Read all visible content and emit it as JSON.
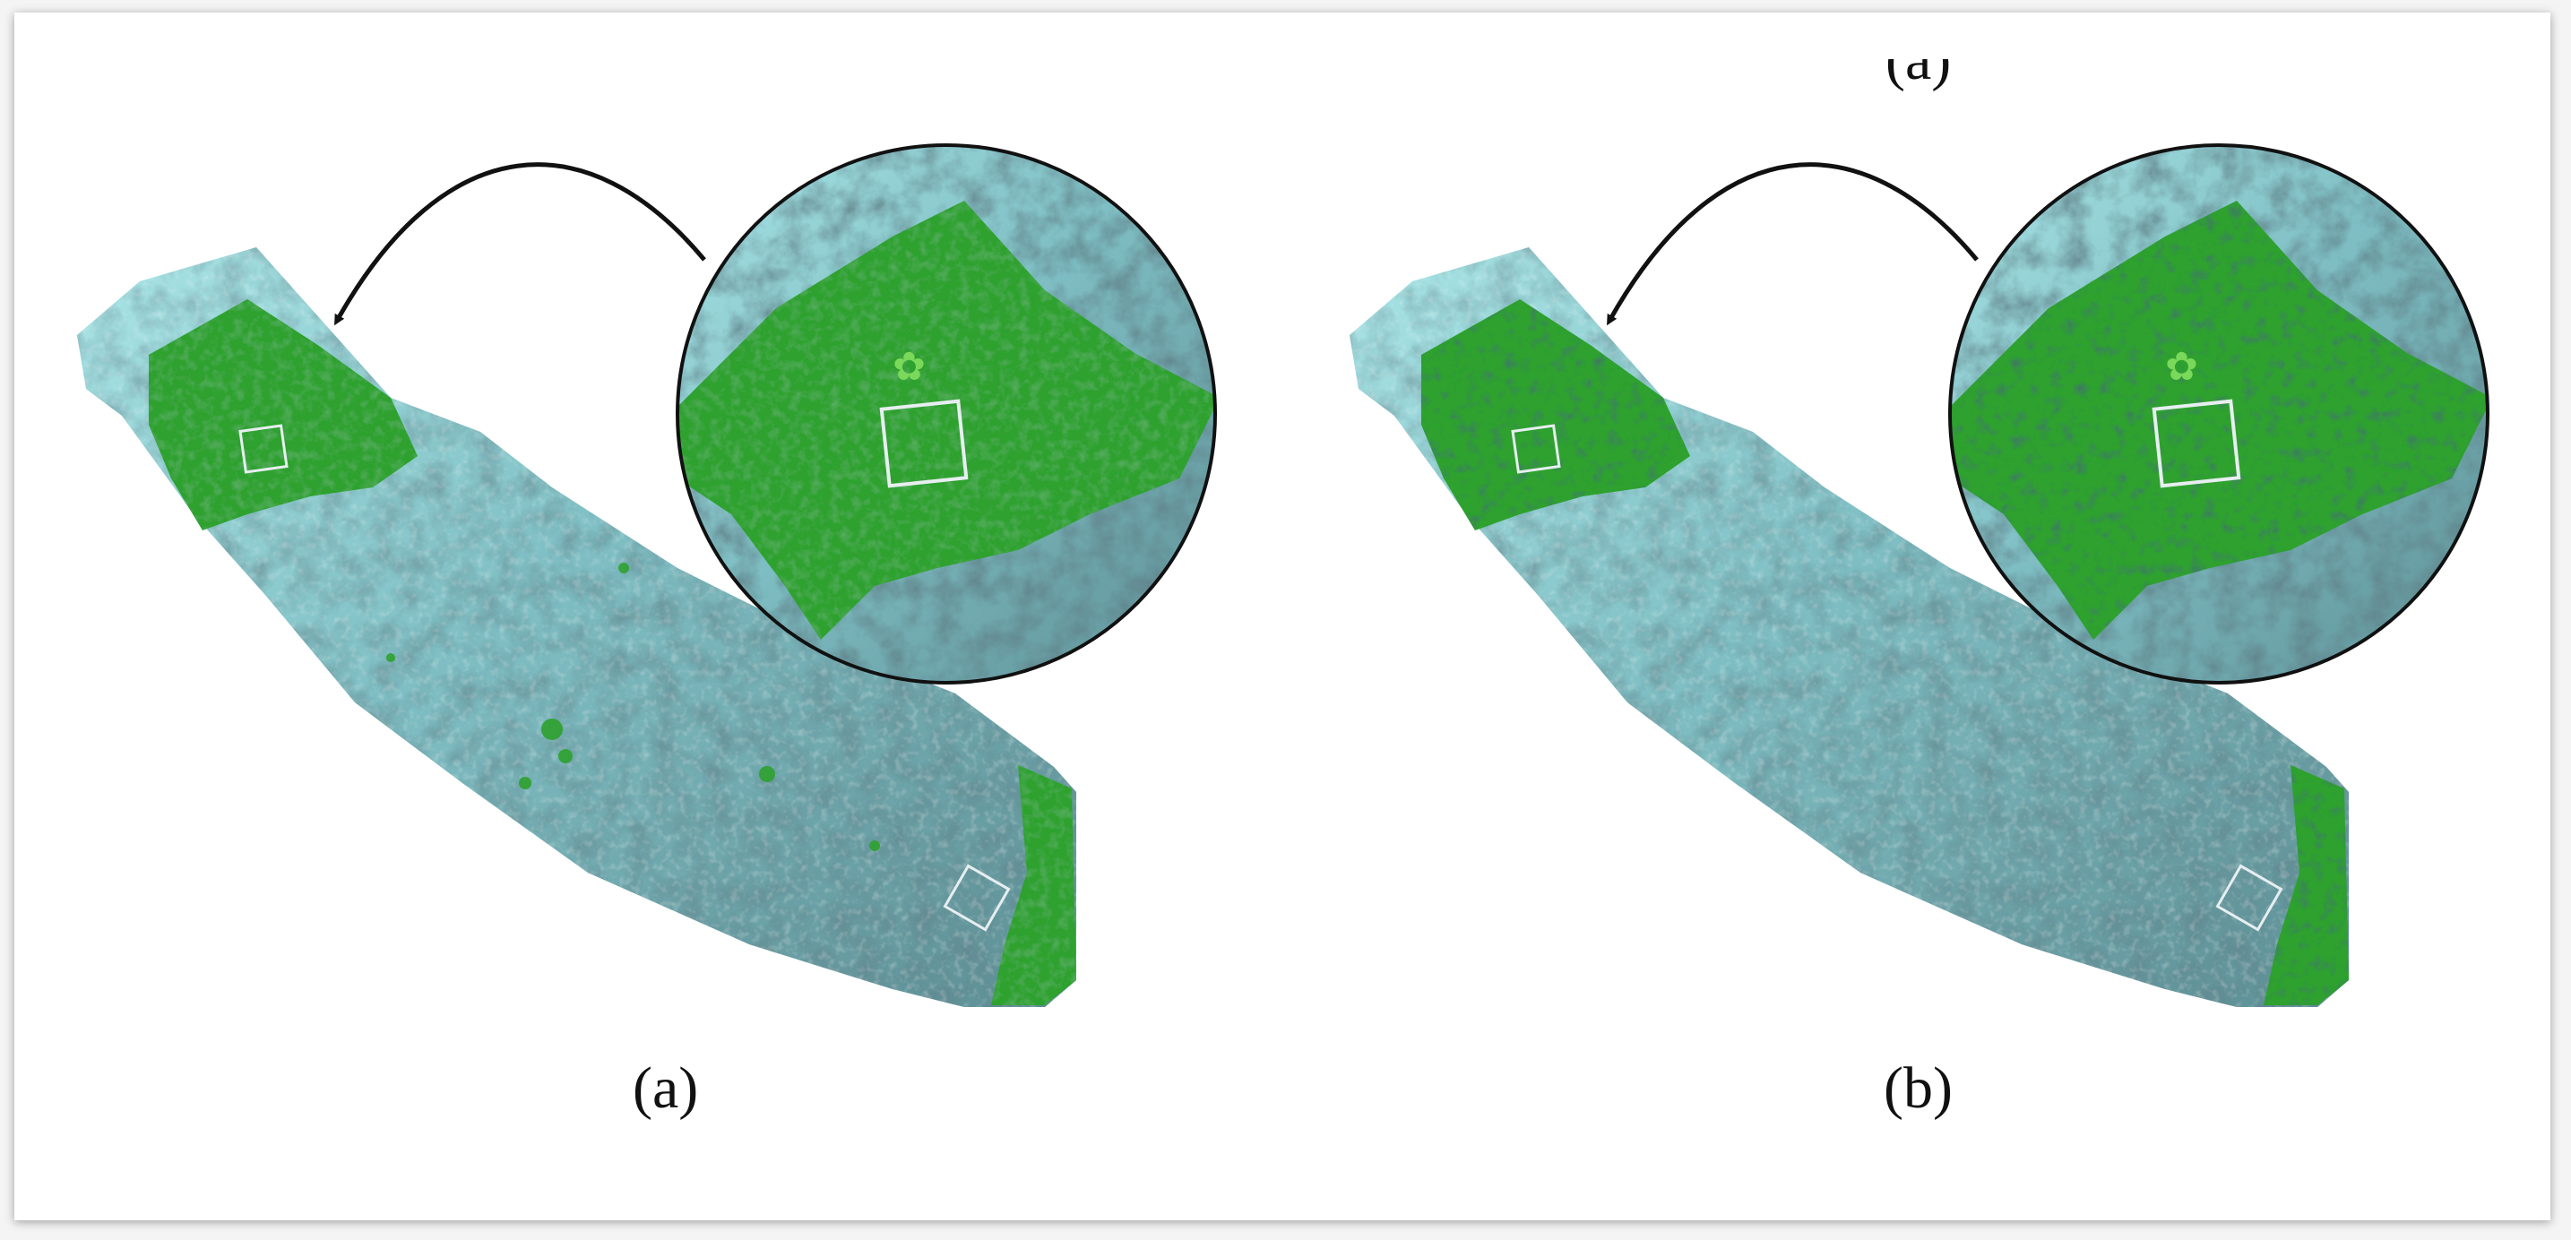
{
  "captions": {
    "left": "(a)",
    "right": "(b)",
    "top_clipped": "(a)"
  },
  "colors": {
    "page_bg": "#ffffff",
    "seagrass_green": "#2ea12e",
    "reef_cyan": "#8ad2d4",
    "reef_dark": "#3b5a5f",
    "arrow": "#111111"
  },
  "panels": [
    {
      "id": "a",
      "description_icon": "orthomosaic-transect-image",
      "inset": "magnified-circle-inset"
    },
    {
      "id": "b",
      "description_icon": "orthomosaic-transect-image",
      "inset": "magnified-circle-inset"
    }
  ]
}
